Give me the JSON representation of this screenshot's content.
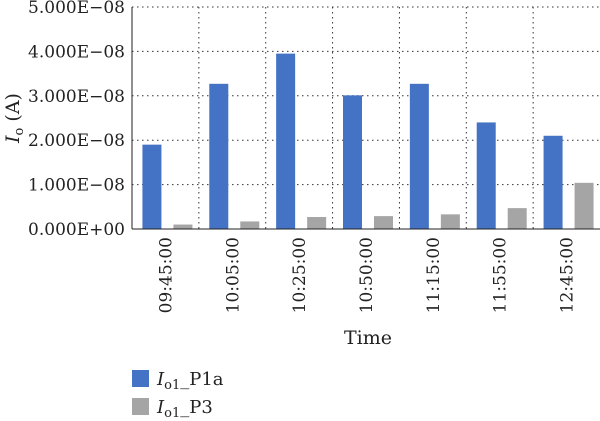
{
  "chart_data": {
    "type": "bar",
    "title": "",
    "xlabel": "Time",
    "ylabel": {
      "symbol": "I",
      "subscript": "o",
      "unit": " (A)"
    },
    "categories": [
      "09:45:00",
      "10:05:00",
      "10:25:00",
      "10:50:00",
      "11:15:00",
      "11:55:00",
      "12:45:00"
    ],
    "series": [
      {
        "name": "P1a",
        "name_symbol": "I",
        "name_subscript": "o1",
        "name_suffix": "_P1a",
        "color": "#4472C4",
        "values": [
          1.9e-08,
          3.27e-08,
          3.95e-08,
          3.01e-08,
          3.27e-08,
          2.4e-08,
          2.1e-08
        ]
      },
      {
        "name": "P3",
        "name_symbol": "I",
        "name_subscript": "o1",
        "name_suffix": "_P3",
        "color": "#A5A5A5",
        "values": [
          1e-09,
          1.7e-09,
          2.7e-09,
          2.9e-09,
          3.3e-09,
          4.7e-09,
          1.04e-08
        ]
      }
    ],
    "ylim": [
      0,
      5e-08
    ],
    "yticks": [
      0,
      1e-08,
      2e-08,
      3e-08,
      4e-08,
      5e-08
    ],
    "ytick_labels": [
      "0.000E+00",
      "1.000E−08",
      "2.000E−08",
      "3.000E−08",
      "4.000E−08",
      "5.000E−08"
    ],
    "grid": true,
    "grid_style": "dotted",
    "legend_position": "bottom-left"
  }
}
